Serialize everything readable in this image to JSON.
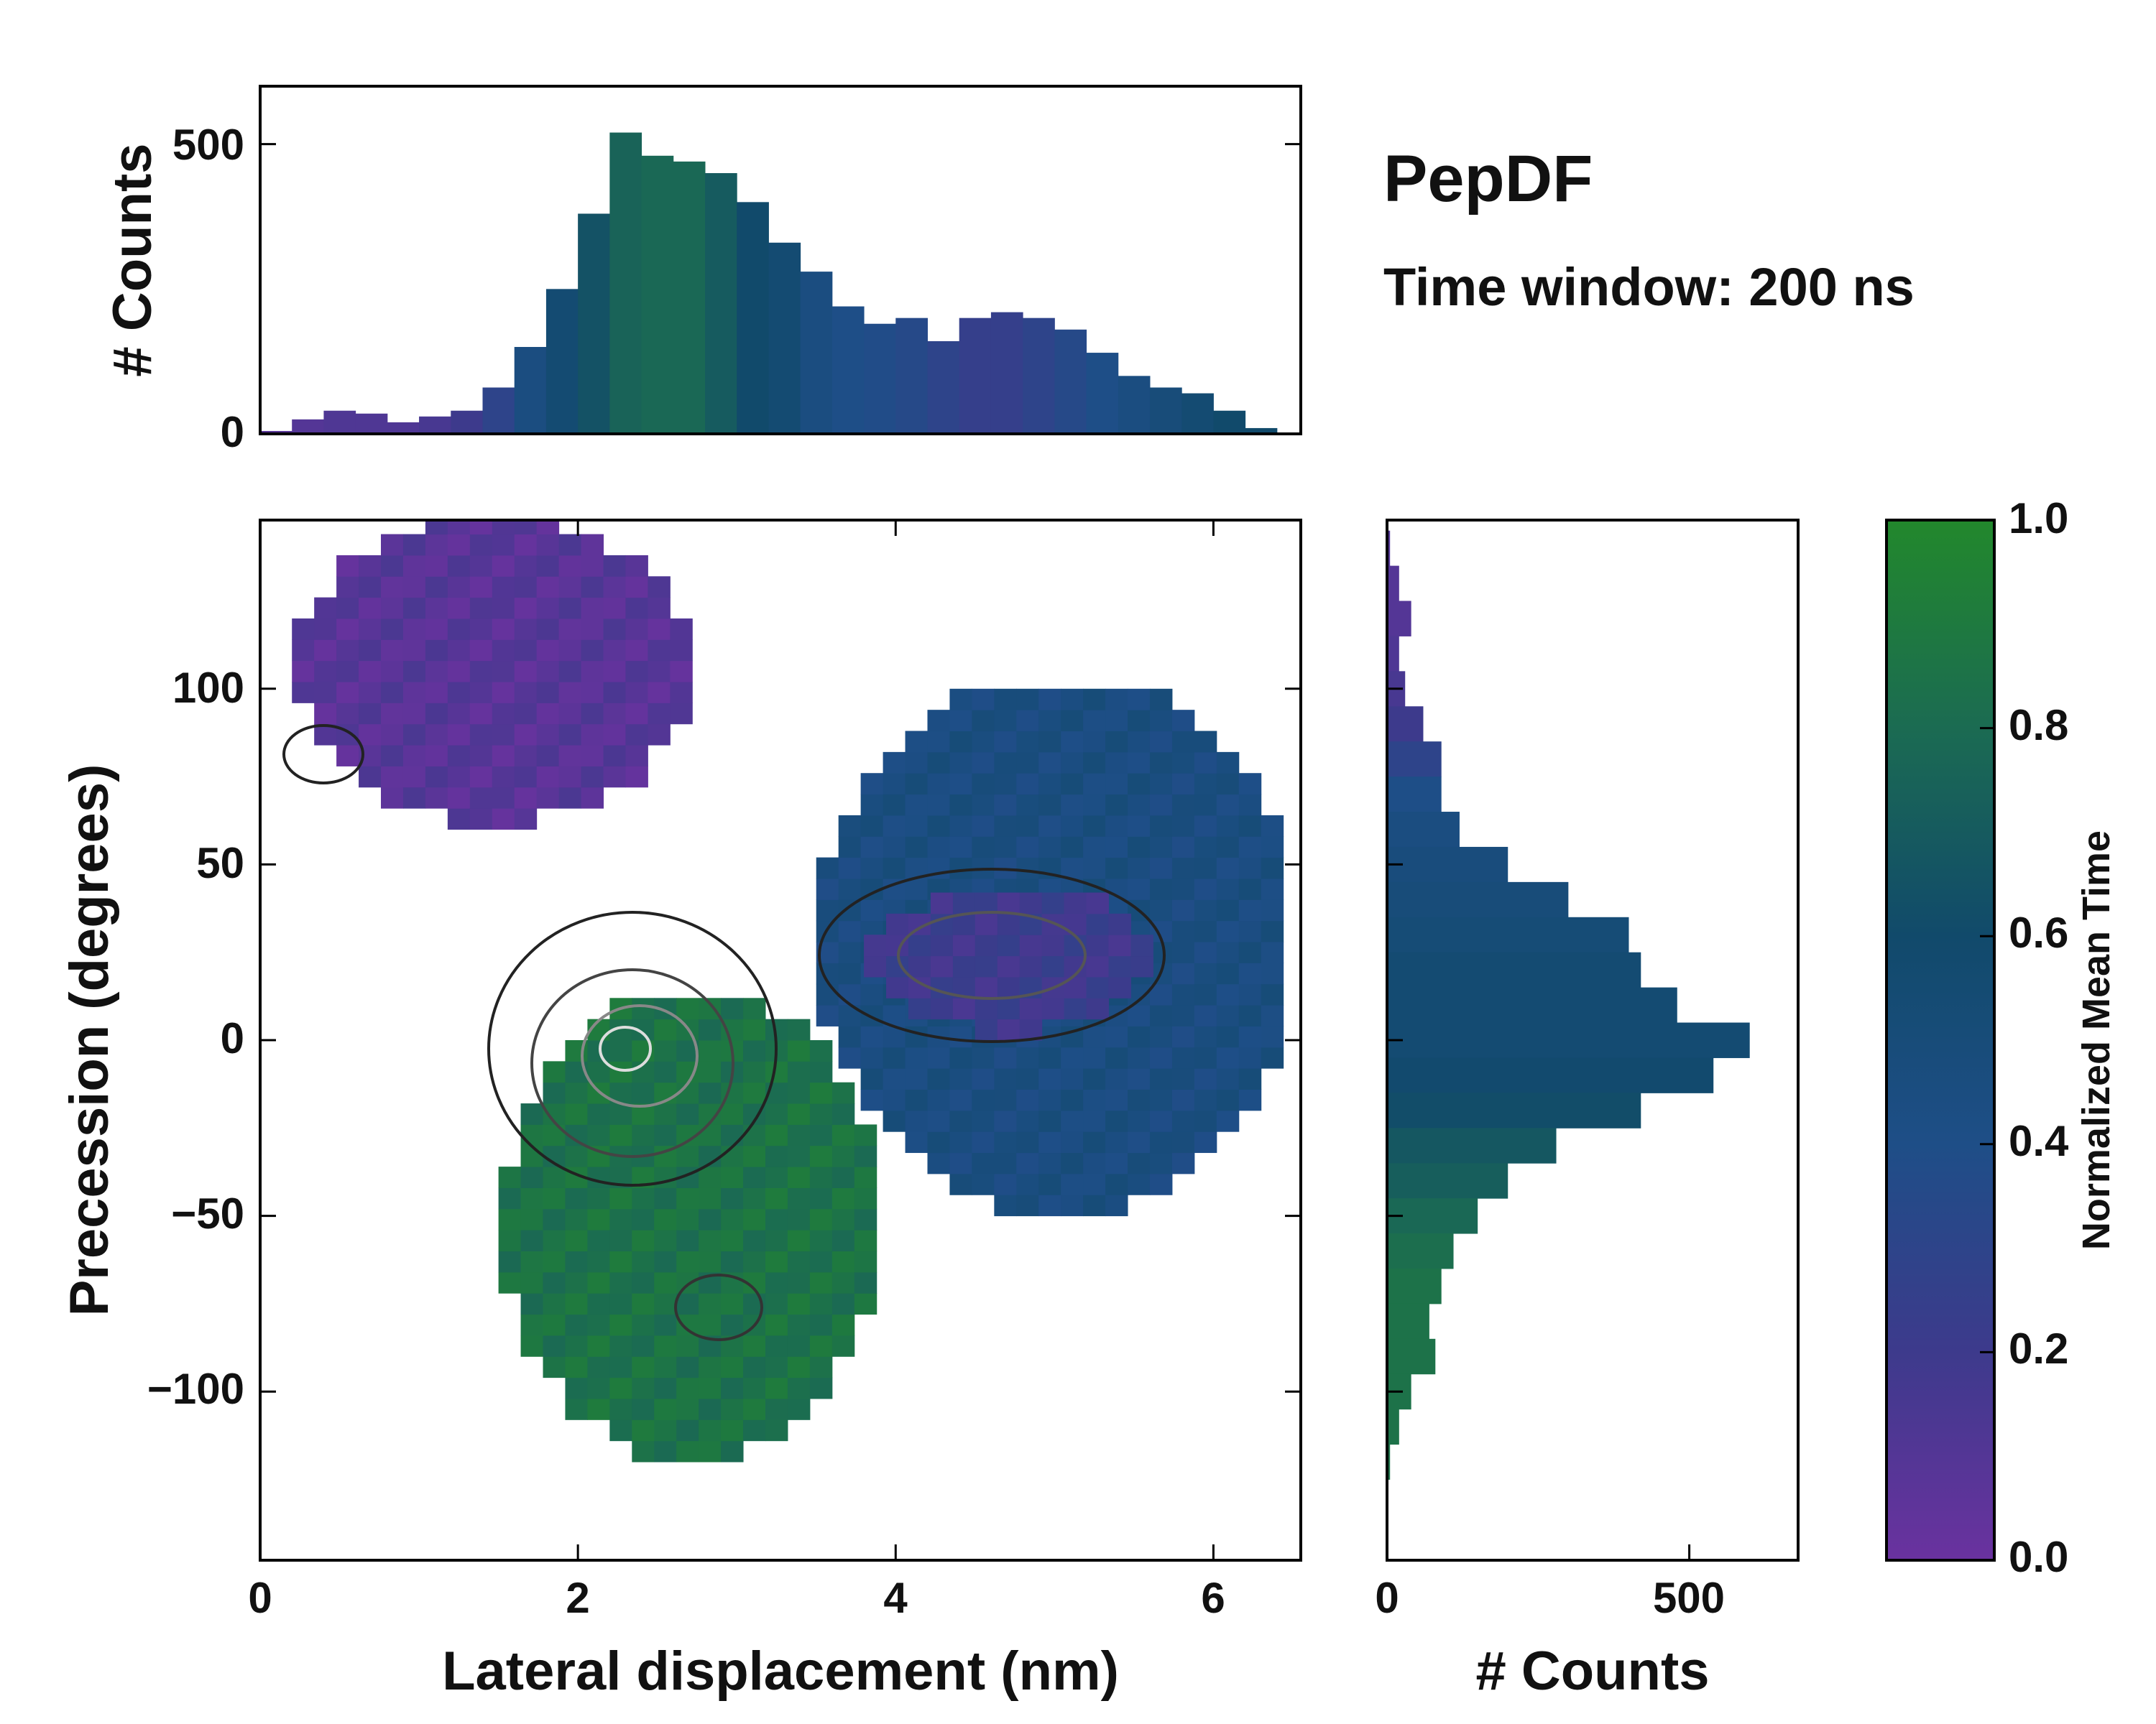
{
  "title": "PepDF",
  "subtitle": "Time window: 200 ns",
  "chart_data": {
    "type": "heatmap",
    "xlabel": "Lateral displacement (nm)",
    "ylabel": "Precession (degrees)",
    "xlim": [
      0,
      6.55
    ],
    "ylim": [
      -148,
      148
    ],
    "xticks": [
      "0",
      "2",
      "4",
      "6"
    ],
    "yticks": [
      "100",
      "50",
      "0",
      "−50",
      "−100"
    ],
    "colorbar": {
      "label": "Normalized Mean Time",
      "range": [
        0,
        1
      ],
      "ticks": [
        "0.0",
        "0.2",
        "0.4",
        "0.6",
        "0.8",
        "1.0"
      ],
      "colors": [
        "#6a329f",
        "#3d3a8c",
        "#1e4e87",
        "#114a6b",
        "#1b6b52",
        "#22882c"
      ]
    },
    "regions": [
      {
        "name": "purple-upper-left",
        "color": 0.08,
        "x": [
          0.2,
          2.6
        ],
        "y": [
          60,
          145
        ]
      },
      {
        "name": "green-lower-left",
        "color": 0.85,
        "x": [
          1.5,
          3.8
        ],
        "y": [
          -120,
          10
        ]
      },
      {
        "name": "blue-mid",
        "color": 0.45,
        "x": [
          3.5,
          6.4
        ],
        "y": [
          -50,
          100
        ]
      },
      {
        "name": "purple-right-core",
        "color": 0.2,
        "x": [
          3.8,
          5.5
        ],
        "y": [
          0,
          40
        ]
      }
    ],
    "top_histogram": {
      "ylabel": "# Counts",
      "yticks": [
        "500",
        "0"
      ],
      "ylim": [
        0,
        600
      ],
      "x": [
        0.1,
        0.3,
        0.5,
        0.7,
        0.9,
        1.1,
        1.3,
        1.5,
        1.7,
        1.9,
        2.1,
        2.3,
        2.5,
        2.7,
        2.9,
        3.1,
        3.3,
        3.5,
        3.7,
        3.9,
        4.1,
        4.3,
        4.5,
        4.7,
        4.9,
        5.1,
        5.3,
        5.5,
        5.7,
        5.9,
        6.1,
        6.3
      ],
      "counts": [
        5,
        25,
        40,
        35,
        20,
        30,
        40,
        80,
        150,
        250,
        380,
        520,
        480,
        470,
        450,
        400,
        330,
        280,
        220,
        190,
        200,
        160,
        200,
        210,
        200,
        180,
        140,
        100,
        80,
        70,
        40,
        10
      ],
      "colors": [
        0.08,
        0.1,
        0.12,
        0.12,
        0.12,
        0.15,
        0.2,
        0.3,
        0.45,
        0.55,
        0.65,
        0.75,
        0.78,
        0.78,
        0.7,
        0.6,
        0.55,
        0.45,
        0.4,
        0.38,
        0.35,
        0.3,
        0.25,
        0.25,
        0.3,
        0.35,
        0.4,
        0.45,
        0.5,
        0.55,
        0.6,
        0.6
      ]
    },
    "right_histogram": {
      "xlabel": "# Counts",
      "xticks": [
        "0",
        "500"
      ],
      "xlim": [
        0,
        680
      ],
      "y": [
        140,
        130,
        120,
        110,
        100,
        90,
        80,
        70,
        60,
        50,
        40,
        30,
        20,
        10,
        0,
        -10,
        -20,
        -30,
        -40,
        -50,
        -60,
        -70,
        -80,
        -90,
        -100,
        -110,
        -120
      ],
      "counts": [
        5,
        20,
        40,
        20,
        30,
        60,
        90,
        90,
        120,
        200,
        300,
        400,
        420,
        480,
        600,
        540,
        420,
        280,
        200,
        150,
        110,
        90,
        70,
        80,
        40,
        20,
        5
      ],
      "colors": [
        0.1,
        0.1,
        0.1,
        0.12,
        0.15,
        0.2,
        0.3,
        0.4,
        0.45,
        0.48,
        0.5,
        0.52,
        0.55,
        0.55,
        0.55,
        0.58,
        0.62,
        0.68,
        0.72,
        0.78,
        0.82,
        0.85,
        0.85,
        0.85,
        0.85,
        0.85,
        0.85
      ]
    }
  }
}
